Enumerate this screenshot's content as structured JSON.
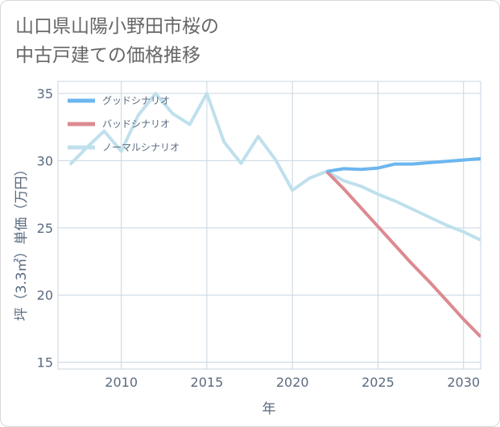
{
  "title": "山口県山陽小野田市桜の\n中古戸建ての価格推移",
  "colors": {
    "good": "#6cb6ee",
    "bad": "#dc8a91",
    "normal": "#bfe0ec",
    "grid": "#c8d6e0",
    "text": "#5a6b80"
  },
  "chart_data": {
    "type": "line",
    "xlabel": "年",
    "ylabel": "坪（3.3㎡）単価（万円）",
    "xlim": [
      2006.3,
      2031
    ],
    "ylim": [
      14.5,
      35.9
    ],
    "xticks": [
      2010,
      2015,
      2020,
      2025,
      2030
    ],
    "xtick_labels": [
      "2010",
      "2015",
      "2020",
      "2025",
      "2030"
    ],
    "yticks": [
      15,
      20,
      25,
      30,
      35
    ],
    "ytick_labels": [
      "15",
      "20",
      "25",
      "30",
      "35"
    ],
    "grid": true,
    "legend_position": "top-left",
    "series": [
      {
        "name": "グッドシナリオ",
        "color_key": "good",
        "x": [
          2022,
          2023,
          2024,
          2025,
          2026,
          2027,
          2028,
          2029,
          2030,
          2031
        ],
        "y": [
          29.2,
          29.4,
          29.35,
          29.45,
          29.75,
          29.75,
          29.85,
          29.95,
          30.05,
          30.15
        ]
      },
      {
        "name": "バッドシナリオ",
        "color_key": "bad",
        "x": [
          2022,
          2023,
          2024,
          2025,
          2026,
          2027,
          2028,
          2029,
          2030,
          2031
        ],
        "y": [
          29.2,
          27.9,
          26.5,
          25.1,
          23.7,
          22.3,
          21.0,
          19.6,
          18.2,
          16.9
        ]
      },
      {
        "name": "ノーマルシナリオ",
        "color_key": "normal",
        "x": [
          2007,
          2008,
          2009,
          2010,
          2011,
          2012,
          2013,
          2014,
          2015,
          2016,
          2017,
          2018,
          2019,
          2020,
          2021,
          2022,
          2023,
          2024,
          2025,
          2026,
          2027,
          2028,
          2029,
          2030,
          2031
        ],
        "y": [
          29.7,
          31.0,
          32.2,
          30.7,
          33.4,
          35.0,
          33.5,
          32.7,
          35.0,
          31.4,
          29.8,
          31.8,
          30.1,
          27.8,
          28.7,
          29.2,
          28.5,
          28.1,
          27.5,
          27.0,
          26.4,
          25.8,
          25.2,
          24.7,
          24.1
        ]
      }
    ]
  }
}
